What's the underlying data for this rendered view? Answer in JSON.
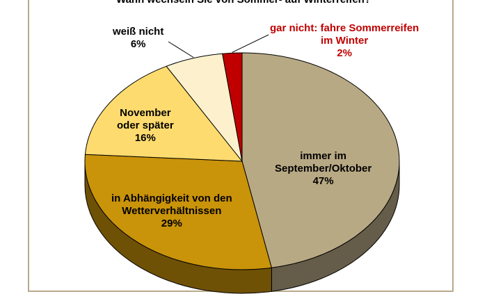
{
  "chart_data": {
    "type": "pie",
    "title": "Wann wechseln Sie von Sommer- auf Winterreifen?",
    "slices": [
      {
        "label": [
          "immer im",
          "September/Oktober"
        ],
        "percent_label": "47%",
        "value": 47,
        "color": "#b8a985"
      },
      {
        "label": [
          "in Abhängigkeit von den",
          "Wetterverhältnissen"
        ],
        "percent_label": "29%",
        "value": 29,
        "color": "#c9930a"
      },
      {
        "label": [
          "November",
          "oder später"
        ],
        "percent_label": "16%",
        "value": 16,
        "color": "#fedb6f"
      },
      {
        "label": [
          "weiß nicht"
        ],
        "percent_label": "6%",
        "value": 6,
        "color": "#fdf1cd"
      },
      {
        "label": [
          "gar nicht: fahre Sommerreifen",
          "im Winter"
        ],
        "percent_label": "2%",
        "value": 2,
        "color": "#c00000"
      }
    ]
  }
}
